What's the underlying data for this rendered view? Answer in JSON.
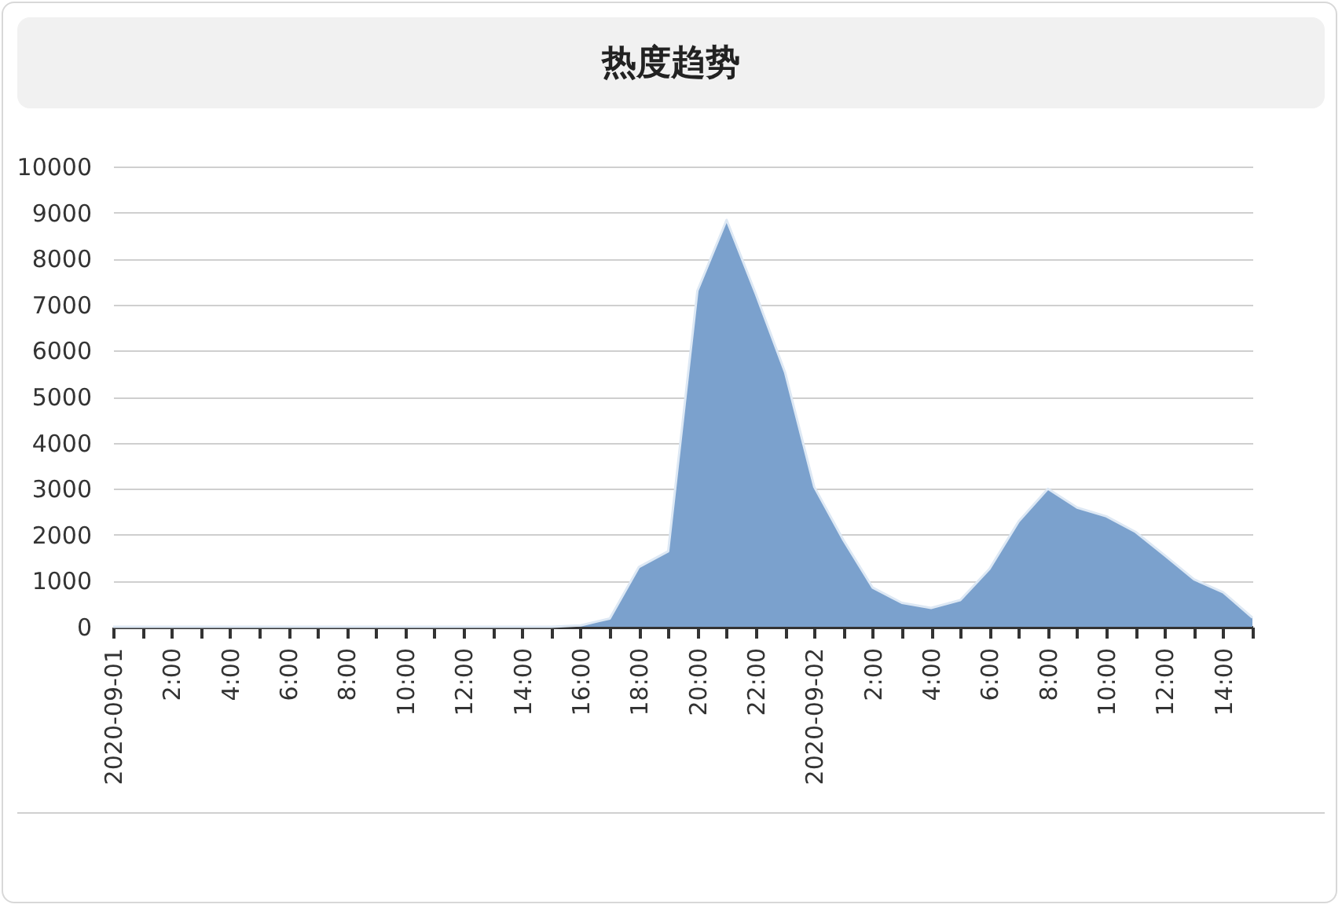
{
  "chart_data": {
    "type": "area",
    "title": "热度趋势",
    "x": [
      "2020-09-01T00:00",
      "2020-09-01T01:00",
      "2020-09-01T02:00",
      "2020-09-01T03:00",
      "2020-09-01T04:00",
      "2020-09-01T05:00",
      "2020-09-01T06:00",
      "2020-09-01T07:00",
      "2020-09-01T08:00",
      "2020-09-01T09:00",
      "2020-09-01T10:00",
      "2020-09-01T11:00",
      "2020-09-01T12:00",
      "2020-09-01T13:00",
      "2020-09-01T14:00",
      "2020-09-01T15:00",
      "2020-09-01T16:00",
      "2020-09-01T17:00",
      "2020-09-01T18:00",
      "2020-09-01T19:00",
      "2020-09-01T20:00",
      "2020-09-01T21:00",
      "2020-09-01T22:00",
      "2020-09-01T23:00",
      "2020-09-02T00:00",
      "2020-09-02T01:00",
      "2020-09-02T02:00",
      "2020-09-02T03:00",
      "2020-09-02T04:00",
      "2020-09-02T05:00",
      "2020-09-02T06:00",
      "2020-09-02T07:00",
      "2020-09-02T08:00",
      "2020-09-02T09:00",
      "2020-09-02T10:00",
      "2020-09-02T11:00",
      "2020-09-02T12:00",
      "2020-09-02T13:00",
      "2020-09-02T14:00",
      "2020-09-02T15:00"
    ],
    "series": [
      {
        "color": "#7ba1cd",
        "values": [
          0,
          0,
          0,
          0,
          0,
          0,
          0,
          0,
          0,
          0,
          0,
          0,
          0,
          0,
          0,
          0,
          30,
          180,
          1300,
          1640,
          7300,
          8840,
          7230,
          5530,
          3040,
          1880,
          850,
          520,
          410,
          580,
          1260,
          2290,
          3000,
          2590,
          2400,
          2060,
          1550,
          1030,
          750,
          200
        ]
      }
    ],
    "xlim": [
      "2020-09-01T00:00",
      "2020-09-02T15:00"
    ],
    "xticks": [
      {
        "value": "2020-09-01T00:00",
        "label": "2020-09-01"
      },
      {
        "value": "2020-09-01T01:00",
        "label": null
      },
      {
        "value": "2020-09-01T02:00",
        "label": "2:00"
      },
      {
        "value": "2020-09-01T03:00",
        "label": null
      },
      {
        "value": "2020-09-01T04:00",
        "label": "4:00"
      },
      {
        "value": "2020-09-01T05:00",
        "label": null
      },
      {
        "value": "2020-09-01T06:00",
        "label": "6:00"
      },
      {
        "value": "2020-09-01T07:00",
        "label": null
      },
      {
        "value": "2020-09-01T08:00",
        "label": "8:00"
      },
      {
        "value": "2020-09-01T09:00",
        "label": null
      },
      {
        "value": "2020-09-01T10:00",
        "label": "10:00"
      },
      {
        "value": "2020-09-01T11:00",
        "label": null
      },
      {
        "value": "2020-09-01T12:00",
        "label": "12:00"
      },
      {
        "value": "2020-09-01T13:00",
        "label": null
      },
      {
        "value": "2020-09-01T14:00",
        "label": "14:00"
      },
      {
        "value": "2020-09-01T15:00",
        "label": null
      },
      {
        "value": "2020-09-01T16:00",
        "label": "16:00"
      },
      {
        "value": "2020-09-01T17:00",
        "label": null
      },
      {
        "value": "2020-09-01T18:00",
        "label": "18:00"
      },
      {
        "value": "2020-09-01T19:00",
        "label": null
      },
      {
        "value": "2020-09-01T20:00",
        "label": "20:00"
      },
      {
        "value": "2020-09-01T21:00",
        "label": null
      },
      {
        "value": "2020-09-01T22:00",
        "label": "22:00"
      },
      {
        "value": "2020-09-01T23:00",
        "label": null
      },
      {
        "value": "2020-09-02T00:00",
        "label": "2020-09-02"
      },
      {
        "value": "2020-09-02T01:00",
        "label": null
      },
      {
        "value": "2020-09-02T02:00",
        "label": "2:00"
      },
      {
        "value": "2020-09-02T03:00",
        "label": null
      },
      {
        "value": "2020-09-02T04:00",
        "label": "4:00"
      },
      {
        "value": "2020-09-02T05:00",
        "label": null
      },
      {
        "value": "2020-09-02T06:00",
        "label": "6:00"
      },
      {
        "value": "2020-09-02T07:00",
        "label": null
      },
      {
        "value": "2020-09-02T08:00",
        "label": "8:00"
      },
      {
        "value": "2020-09-02T09:00",
        "label": null
      },
      {
        "value": "2020-09-02T10:00",
        "label": "10:00"
      },
      {
        "value": "2020-09-02T11:00",
        "label": null
      },
      {
        "value": "2020-09-02T12:00",
        "label": "12:00"
      },
      {
        "value": "2020-09-02T13:00",
        "label": null
      },
      {
        "value": "2020-09-02T14:00",
        "label": "14:00"
      },
      {
        "value": "2020-09-02T15:00",
        "label": null
      }
    ],
    "ylim": [
      0,
      10000
    ],
    "yticks": [
      0,
      1000,
      2000,
      3000,
      4000,
      5000,
      6000,
      7000,
      8000,
      9000,
      10000
    ],
    "grid": "y"
  }
}
